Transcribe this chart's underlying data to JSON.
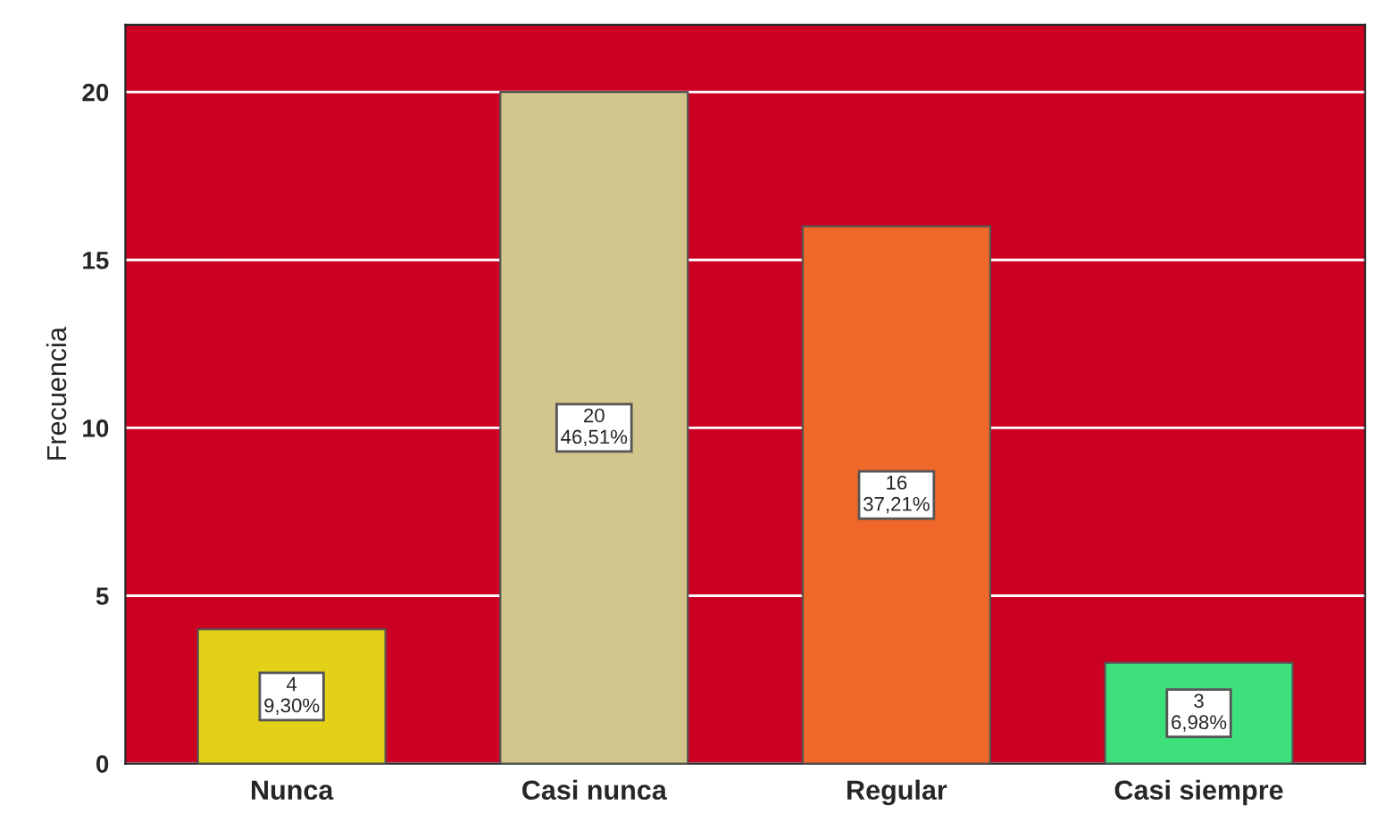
{
  "chart_data": {
    "type": "bar",
    "ylabel": "Frecuencia",
    "categories": [
      "Nunca",
      "Casi nunca",
      "Regular",
      "Casi siempre"
    ],
    "values": [
      4,
      20,
      16,
      3
    ],
    "colors": [
      "#e3d118",
      "#d2c68c",
      "#f0672a",
      "#3de07a"
    ],
    "value_labels": [
      "4\n9,30%",
      "20\n46,51%",
      "16\n37,21%",
      "3\n6,98%"
    ],
    "ylim": [
      0,
      22
    ],
    "yticks": [
      0,
      5,
      10,
      15,
      20
    ],
    "grid": "y"
  }
}
